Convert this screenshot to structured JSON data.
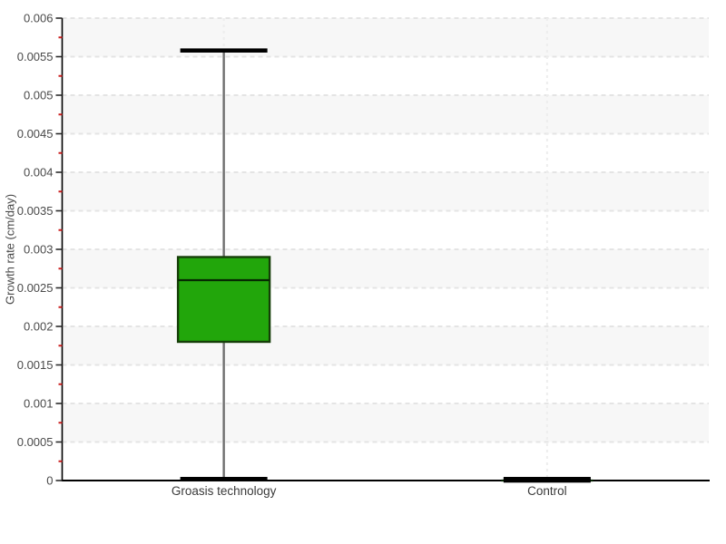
{
  "chart_data": {
    "type": "boxplot",
    "title": "",
    "xlabel": "",
    "ylabel": "Growth rate (cm/day)",
    "ylim": [
      0,
      0.006
    ],
    "y_major_step": 0.0005,
    "y_minor_step": 0.00025,
    "y_tick_labels": [
      "0",
      "0.0005",
      "0.001",
      "0.0015",
      "0.002",
      "0.0025",
      "0.003",
      "0.0035",
      "0.004",
      "0.0045",
      "0.005",
      "0.0055",
      "0.006"
    ],
    "categories": [
      "Groasis technology",
      "Control"
    ],
    "series": [
      {
        "name": "Groasis technology",
        "min": 2e-05,
        "q1": 0.0018,
        "median": 0.0026,
        "q3": 0.0029,
        "max": 0.00558
      },
      {
        "name": "Control",
        "min": 0.0,
        "q1": 0.0,
        "median": 0.0,
        "q3": 0.0,
        "max": 2e-05
      }
    ],
    "layout": {
      "legend": "none",
      "grid": "dashed horizontal gridlines at major ticks, dashed vertical gridline at each category, alternating shaded bands every 0.0005"
    },
    "colors": {
      "background": "#ffffff",
      "band": "#f7f7f7",
      "grid_h": "#e4e4e4",
      "grid_v": "#ededed",
      "axis": "#000000",
      "major_tick": "#2a2a2a",
      "minor_tick": "#cc2222",
      "tick_label": "#4a4a4a",
      "axis_title": "#4a4a4a",
      "category_label": "#3a3a3a",
      "box_fill": "#22a60b",
      "box_border": "#153e08",
      "median": "#062a02",
      "whisker": "#6f6f6f",
      "cap": "#000000"
    }
  }
}
